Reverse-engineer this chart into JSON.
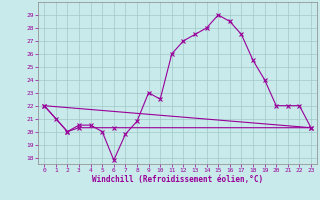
{
  "xlabel": "Windchill (Refroidissement éolien,°C)",
  "bg_color": "#c8eaea",
  "grid_color": "#a0c8c8",
  "line_color": "#990099",
  "spine_color": "#888888",
  "ylim": [
    17.5,
    30
  ],
  "xlim": [
    -0.5,
    23.5
  ],
  "yticks": [
    18,
    19,
    20,
    21,
    22,
    23,
    24,
    25,
    26,
    27,
    28,
    29
  ],
  "xticks": [
    0,
    1,
    2,
    3,
    4,
    5,
    6,
    7,
    8,
    9,
    10,
    11,
    12,
    13,
    14,
    15,
    16,
    17,
    18,
    19,
    20,
    21,
    22,
    23
  ],
  "line1_x": [
    0,
    1,
    2,
    3,
    4,
    5,
    6,
    7,
    8,
    9,
    10,
    11,
    12,
    13,
    14,
    15,
    16,
    17,
    18,
    19,
    20,
    21,
    22,
    23
  ],
  "line1_y": [
    22,
    21,
    20,
    20.5,
    20.5,
    20,
    17.8,
    19.8,
    20.8,
    23,
    22.5,
    26,
    27,
    27.5,
    28,
    29,
    28.5,
    27.5,
    25.5,
    24,
    22,
    22,
    22,
    20.3
  ],
  "line2_x": [
    0,
    2,
    3,
    6,
    23
  ],
  "line2_y": [
    22,
    20,
    20.3,
    20.3,
    20.3
  ],
  "line3_x": [
    0,
    23
  ],
  "line3_y": [
    22,
    20.3
  ],
  "marker": "x",
  "marker_size": 3,
  "line_width": 0.8,
  "tick_fontsize": 4.5,
  "xlabel_fontsize": 5.5
}
